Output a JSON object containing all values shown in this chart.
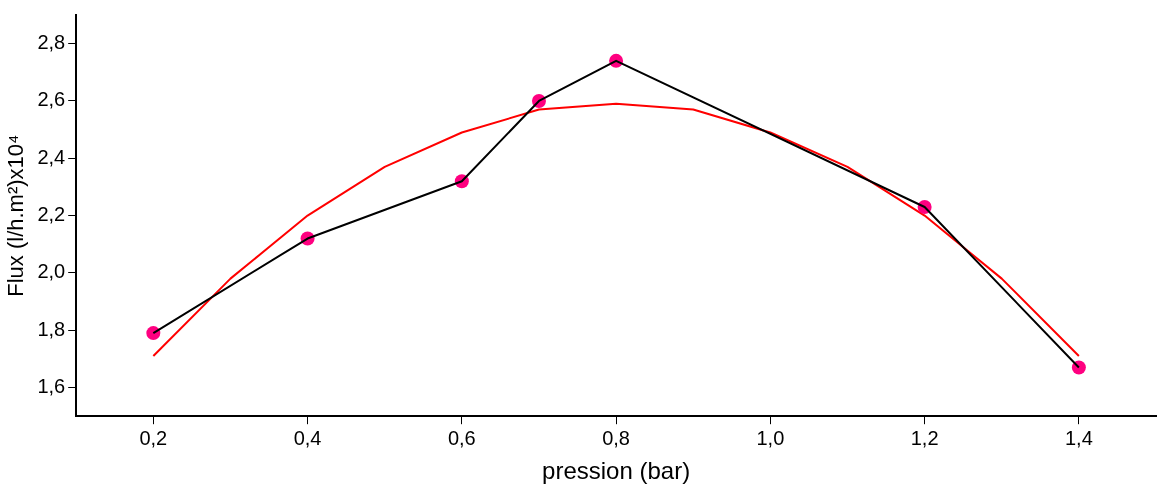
{
  "chart_data": {
    "type": "line",
    "xlabel": "pression (bar)",
    "ylabel": "Flux (l/h.m²)x10⁴",
    "xlim": [
      0.1,
      1.5
    ],
    "ylim": [
      1.5,
      2.9
    ],
    "xticks": [
      {
        "value": 0.2,
        "label": "0,2"
      },
      {
        "value": 0.4,
        "label": "0,4"
      },
      {
        "value": 0.6,
        "label": "0,6"
      },
      {
        "value": 0.8,
        "label": "0,8"
      },
      {
        "value": 1.0,
        "label": "1,0"
      },
      {
        "value": 1.2,
        "label": "1,2"
      },
      {
        "value": 1.4,
        "label": "1,4"
      }
    ],
    "yticks": [
      {
        "value": 1.6,
        "label": "1,6"
      },
      {
        "value": 1.8,
        "label": "1,8"
      },
      {
        "value": 2.0,
        "label": "2,0"
      },
      {
        "value": 2.2,
        "label": "2,2"
      },
      {
        "value": 2.4,
        "label": "2,4"
      },
      {
        "value": 2.6,
        "label": "2,6"
      },
      {
        "value": 2.8,
        "label": "2,8"
      }
    ],
    "grid": false,
    "legend": false,
    "series": [
      {
        "type": "line",
        "color": "#000000",
        "marker": "none",
        "x": [
          0.2,
          0.4,
          0.6,
          0.7,
          0.8,
          1.2,
          1.4
        ],
        "values": [
          1.79,
          2.12,
          2.32,
          2.6,
          2.74,
          2.23,
          1.67
        ]
      },
      {
        "type": "scatter",
        "color": "#ff0080",
        "marker": "circle",
        "x": [
          0.2,
          0.4,
          0.6,
          0.7,
          0.8,
          1.2,
          1.4
        ],
        "values": [
          1.79,
          2.12,
          2.32,
          2.6,
          2.74,
          2.23,
          1.67
        ]
      },
      {
        "type": "line",
        "color": "#ff0000",
        "marker": "none",
        "x": [
          0.2,
          0.3,
          0.4,
          0.5,
          0.6,
          0.7,
          0.8,
          0.9,
          1.0,
          1.1,
          1.2,
          1.3,
          1.4
        ],
        "values": [
          1.71,
          1.98,
          2.2,
          2.37,
          2.49,
          2.57,
          2.59,
          2.57,
          2.49,
          2.37,
          2.2,
          1.98,
          1.71
        ]
      }
    ]
  }
}
